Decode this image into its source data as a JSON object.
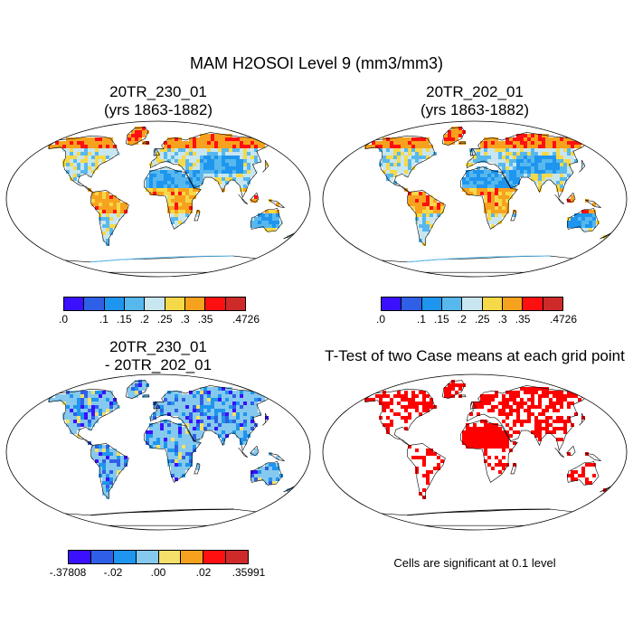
{
  "title": "MAM H2OSOI Level 9 (mm3/mm3)",
  "panels": {
    "top_left": {
      "title": [
        "20TR_230_01",
        "(yrs 1863-1882)"
      ],
      "kind": "field"
    },
    "top_right": {
      "title": [
        "20TR_202_01",
        "(yrs 1863-1882)"
      ],
      "kind": "field"
    },
    "bottom_left": {
      "title": [
        "20TR_230_01",
        "- 20TR_202_01"
      ],
      "kind": "diff"
    },
    "bottom_right": {
      "title": [
        "T-Test of two Case means at each grid point"
      ],
      "kind": "ttest"
    }
  },
  "colorbars": {
    "field": {
      "colors": [
        "#3a10ff",
        "#2f5fe6",
        "#1e95ee",
        "#57b8ee",
        "#c8e6f0",
        "#f6d948",
        "#f7a21e",
        "#ff1010",
        "#cf2a2a"
      ],
      "labels": [
        ".0",
        ".1",
        ".15",
        ".2",
        ".25",
        ".3",
        ".35",
        ".4726"
      ],
      "label_boundaries": [
        0,
        2,
        3,
        4,
        5,
        6,
        7,
        9
      ]
    },
    "diff": {
      "colors": [
        "#3a10ff",
        "#2f5fe6",
        "#1e95ee",
        "#86c9ee",
        "#f4e06a",
        "#f7a21e",
        "#ff1010",
        "#cf2a2a"
      ],
      "labels": [
        "-.37808",
        "-.02",
        ".00",
        ".02",
        ".35991"
      ],
      "label_boundaries": [
        0,
        2,
        4,
        6,
        8
      ]
    }
  },
  "ttest_color": "#ff0000",
  "significance_note": "Cells are significant at 0.1 level"
}
